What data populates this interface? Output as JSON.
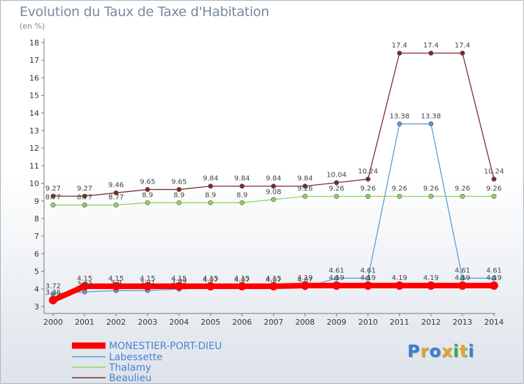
{
  "header": {
    "title": "Evolution du Taux de Taxe d'Habitation",
    "unit": "(en %)"
  },
  "logo": {
    "text": "Proxiti",
    "colors": [
      "#3a7fd1",
      "#e3a52a",
      "#3a7fd1",
      "#e3a52a",
      "#3aa84a",
      "#e3a52a",
      "#3a7fd1"
    ]
  },
  "chart_data": {
    "type": "line",
    "x": [
      2000,
      2001,
      2002,
      2003,
      2004,
      2005,
      2006,
      2007,
      2008,
      2009,
      2010,
      2011,
      2012,
      2013,
      2014
    ],
    "ylim": [
      3,
      18
    ],
    "yticks": [
      3,
      4,
      5,
      6,
      7,
      8,
      9,
      10,
      11,
      12,
      13,
      14,
      15,
      16,
      17,
      18
    ],
    "grid": false,
    "legend": "bottom-left",
    "series": [
      {
        "name": "MONESTIER-PORT-DIEU",
        "color": "#ff0000",
        "values": [
          3.36,
          4.15,
          4.15,
          4.15,
          4.15,
          4.15,
          4.15,
          4.15,
          4.19,
          4.19,
          4.19,
          4.19,
          4.19,
          4.19,
          4.19
        ],
        "labels": [
          "3.36",
          "4.15",
          "4.15",
          "4.15",
          "4.15",
          "4.15",
          "4.15",
          "4.15",
          "4.19",
          "4.19",
          "4.19",
          "4.19",
          "4.19",
          "4.19",
          "4.19"
        ]
      },
      {
        "name": "Labessette",
        "color": "#5b9bd5",
        "values": [
          3.72,
          3.83,
          3.9,
          3.91,
          3.99,
          4.07,
          4.07,
          4.07,
          4.07,
          4.61,
          4.61,
          13.38,
          13.38,
          4.61,
          4.61
        ],
        "labels": [
          "3.72",
          "3.83",
          "3.9",
          "3.91",
          "3.99",
          "4.07",
          "4.07",
          "4.07",
          "4.07",
          "4.61",
          "4.61",
          "13.38",
          "13.38",
          "4.61",
          "4.61"
        ]
      },
      {
        "name": "Thalamy",
        "color": "#8dd35f",
        "values": [
          8.77,
          8.77,
          8.77,
          8.9,
          8.9,
          8.9,
          8.9,
          9.08,
          9.26,
          9.26,
          9.26,
          9.26,
          9.26,
          9.26,
          9.26
        ],
        "labels": [
          "8.77",
          "8.77",
          "8.77",
          "8.9",
          "8.9",
          "8.9",
          "8.9",
          "9.08",
          "9.26",
          "9.26",
          "9.26",
          "9.26",
          "9.26",
          "9.26",
          "9.26"
        ]
      },
      {
        "name": "Beaulieu",
        "color": "#7b2a2a",
        "values": [
          9.27,
          9.27,
          9.46,
          9.65,
          9.65,
          9.84,
          9.84,
          9.84,
          9.84,
          10.04,
          10.24,
          17.4,
          17.4,
          17.4,
          10.24
        ],
        "labels": [
          "9.27",
          "9.27",
          "9.46",
          "9.65",
          "9.65",
          "9.84",
          "9.84",
          "9.84",
          "9.84",
          "10.04",
          "10.24",
          "17.4",
          "17.4",
          "17.4",
          "10.24"
        ]
      }
    ]
  }
}
